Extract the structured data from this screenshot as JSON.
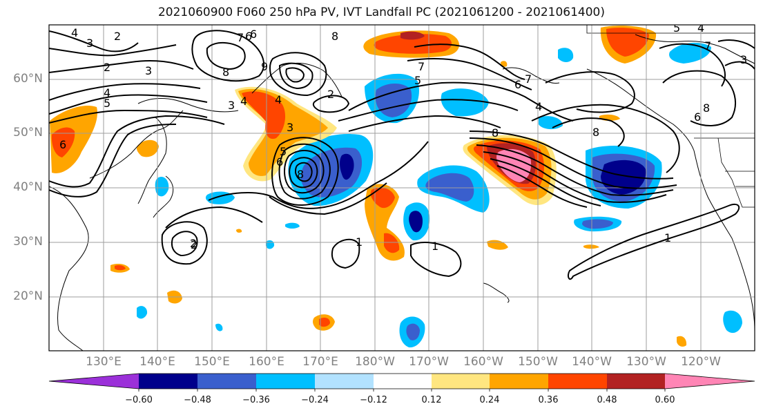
{
  "title": "2021060900 F060 250 hPa PV, IVT Landfall PC (2021061200 - 2021061400)",
  "map": {
    "lat_labels": [
      "60°N",
      "50°N",
      "40°N",
      "30°N",
      "20°N"
    ],
    "lon_labels": [
      "130°E",
      "140°E",
      "150°E",
      "160°E",
      "170°E",
      "180°W",
      "170°W",
      "160°W",
      "150°W",
      "140°W",
      "130°W",
      "120°W"
    ],
    "contour_labels": [
      "4",
      "3",
      "2",
      "2",
      "3",
      "4",
      "5",
      "3",
      "4",
      "6",
      "6",
      "7",
      "6",
      "8",
      "9",
      "2",
      "3",
      "4",
      "5",
      "6",
      "8",
      "2",
      "8",
      "5",
      "7",
      "8",
      "6",
      "7",
      "8",
      "4",
      "5",
      "4",
      "3",
      "7",
      "6",
      "8",
      "2",
      "1",
      "1",
      "1"
    ],
    "colors": {
      "land_outline": "#000000",
      "gridline": "#9e9e9e",
      "contour": "#000000"
    }
  },
  "colorbar": {
    "ticks": [
      "−0.60",
      "−0.48",
      "−0.36",
      "−0.24",
      "−0.12",
      "0.12",
      "0.24",
      "0.36",
      "0.48",
      "0.60"
    ],
    "colors": [
      "#9b30d9",
      "#00008b",
      "#3a5fcd",
      "#00bfff",
      "#b2e2ff",
      "#ffffff",
      "#ffe680",
      "#ffa500",
      "#ff4500",
      "#b22222",
      "#ff85b5"
    ]
  }
}
